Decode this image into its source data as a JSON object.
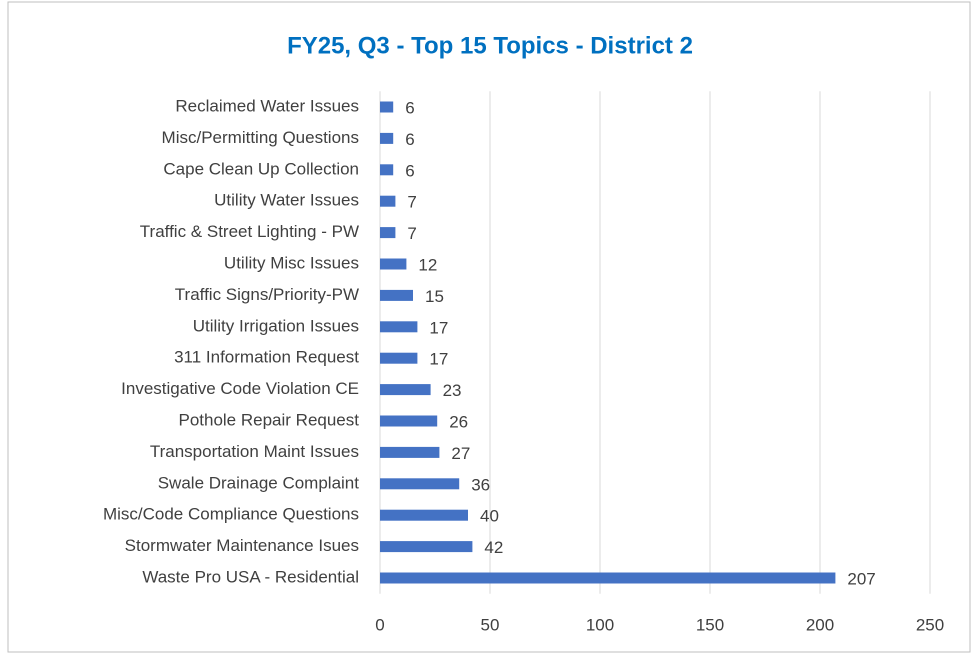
{
  "chart_data": {
    "type": "bar",
    "orientation": "horizontal",
    "title": "FY25, Q3 - Top 15 Topics - District 2",
    "categories": [
      "Reclaimed Water Issues",
      "Misc/Permitting Questions",
      "Cape Clean Up Collection",
      "Utility Water Issues",
      "Traffic & Street Lighting - PW",
      "Utility Misc Issues",
      "Traffic Signs/Priority-PW",
      "Utility Irrigation Issues",
      "311 Information Request",
      "Investigative Code Violation CE",
      "Pothole Repair Request",
      "Transportation Maint Issues",
      "Swale Drainage Complaint",
      "Misc/Code Compliance Questions",
      "Stormwater Maintenance Isues",
      "Waste Pro USA - Residential"
    ],
    "values": [
      6,
      6,
      6,
      7,
      7,
      12,
      15,
      17,
      17,
      23,
      26,
      27,
      36,
      40,
      42,
      207
    ],
    "color": "#4472c4",
    "xlim": [
      0,
      250
    ],
    "xticks": [
      0,
      50,
      100,
      150,
      200,
      250
    ],
    "grid": true
  }
}
